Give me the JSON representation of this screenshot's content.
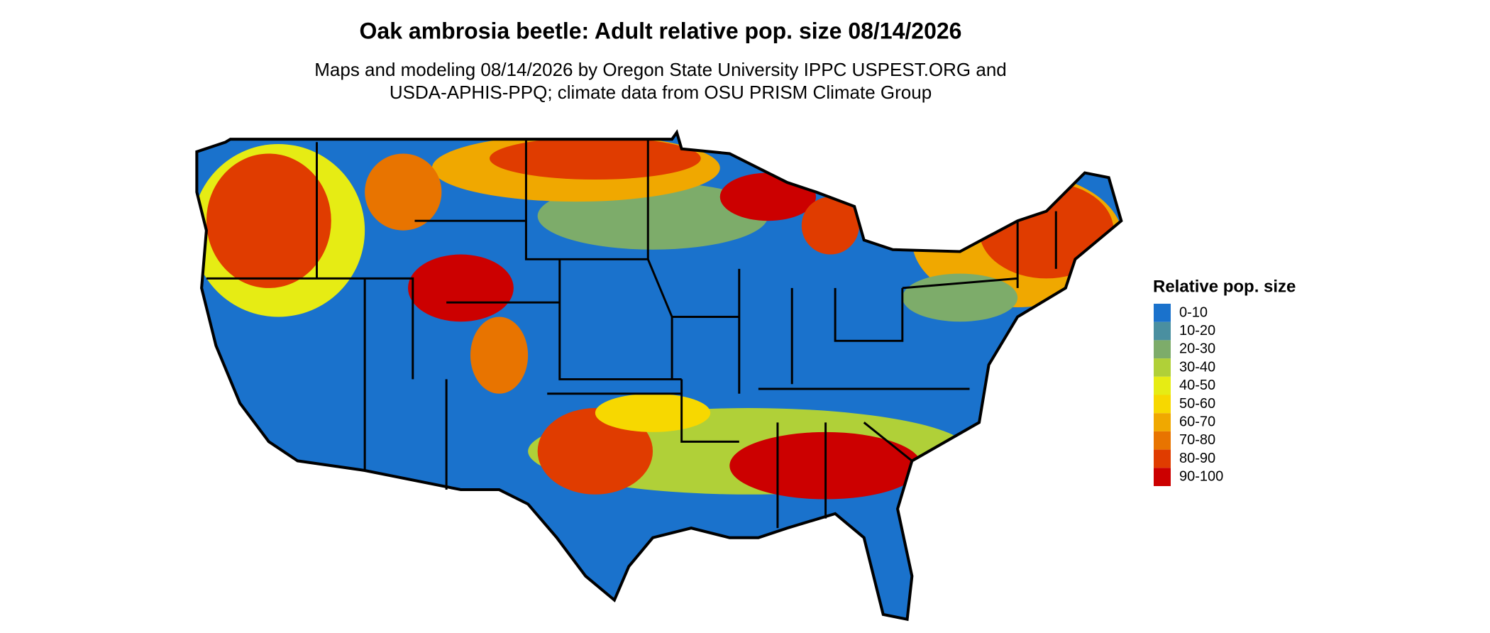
{
  "header": {
    "title": "Oak ambrosia beetle: Adult relative pop. size 08/14/2026",
    "subtitle": [
      "Maps and modeling 08/14/2026 by Oregon State University IPPC USPEST.ORG and",
      "USDA-APHIS-PPQ; climate data from OSU PRISM Climate Group"
    ]
  },
  "legend": {
    "title": "Relative pop. size",
    "items": [
      {
        "label": "0-10",
        "color": "#1a72cc"
      },
      {
        "label": "10-20",
        "color": "#4a8fa0"
      },
      {
        "label": "20-30",
        "color": "#7dac6a"
      },
      {
        "label": "30-40",
        "color": "#b0d038"
      },
      {
        "label": "40-50",
        "color": "#e6ec14"
      },
      {
        "label": "50-60",
        "color": "#f7d800"
      },
      {
        "label": "60-70",
        "color": "#f0a800"
      },
      {
        "label": "70-80",
        "color": "#e87400"
      },
      {
        "label": "80-90",
        "color": "#e03c00"
      },
      {
        "label": "90-100",
        "color": "#cc0000"
      }
    ]
  }
}
